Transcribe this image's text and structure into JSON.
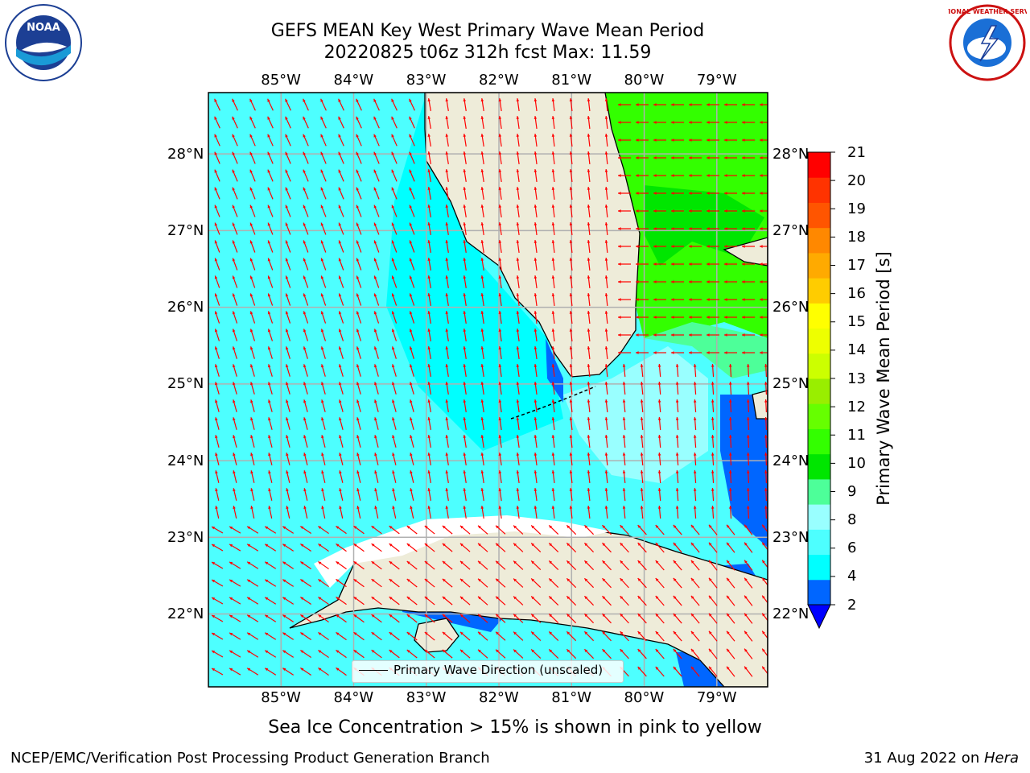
{
  "title": {
    "line1": "GEFS MEAN Key West Primary Wave Mean Period",
    "line2": "20220825 t06z 312h fcst   Max: 11.59"
  },
  "axes": {
    "lon_labels": [
      "85°W",
      "84°W",
      "83°W",
      "82°W",
      "81°W",
      "80°W",
      "79°W"
    ],
    "lat_labels": [
      "28°N",
      "27°N",
      "26°N",
      "25°N",
      "24°N",
      "23°N",
      "22°N"
    ],
    "lon_range": [
      -86.0,
      -78.3
    ],
    "lat_range": [
      21.05,
      28.8
    ],
    "gridlines": true
  },
  "legend": {
    "label": "Primary Wave Direction (unscaled)"
  },
  "colorbar": {
    "label": "Primary Wave Mean Period [s]",
    "ticks": [
      "2",
      "4",
      "6",
      "8",
      "9",
      "10",
      "11",
      "12",
      "13",
      "14",
      "15",
      "16",
      "17",
      "18",
      "19",
      "20",
      "21"
    ],
    "colors": [
      "#0066ff",
      "#00ffff",
      "#4dffff",
      "#99ffff",
      "#4dff99",
      "#00e600",
      "#33ff00",
      "#66ff00",
      "#99ee00",
      "#ccff00",
      "#eeff00",
      "#ffff00",
      "#ffcc00",
      "#ffaa00",
      "#ff8800",
      "#ff5500",
      "#ff3300",
      "#ff0000"
    ],
    "extend_color": "#0000ff"
  },
  "caption": "Sea Ice Concentration > 15% is shown in pink to yellow",
  "footer": {
    "left": "NCEP/EMC/Verification Post Processing Product Generation Branch",
    "right_date": "31 Aug 2022 on ",
    "right_host": "Hera"
  },
  "logos": {
    "noaa_text": "NOAA",
    "nws_text": "NATIONAL WEATHER SERVICE"
  },
  "colors": {
    "ocean": "#4dffff",
    "land": "#eeecd9",
    "arrows": "#ff0000",
    "grid": "#b0b0b0"
  }
}
